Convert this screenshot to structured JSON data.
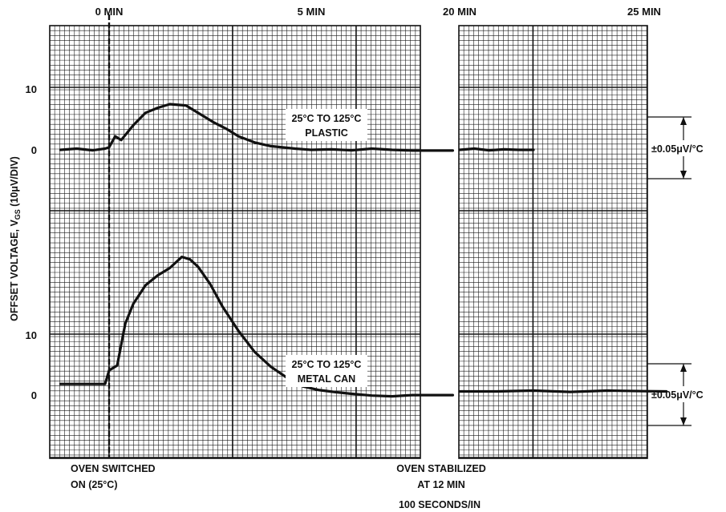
{
  "chart_data": {
    "type": "line",
    "ylabel": "OFFSET VOLTAGE, V",
    "ylabel_subscript": "GS",
    "ylabel_unit": "(10μV/DIV)",
    "xlabel": "100 SECONDS/IN",
    "top_time_labels": [
      "0 MIN",
      "5 MIN",
      "20 MIN",
      "25 MIN"
    ],
    "y_tick_labels": {
      "upper_ten": "10",
      "upper_zero": "0",
      "lower_ten": "10",
      "lower_zero": "0"
    },
    "annotations": {
      "oven_on_line1": "OVEN SWITCHED",
      "oven_on_line2": "ON (25°C)",
      "oven_stable_line1": "OVEN STABILIZED",
      "oven_stable_line2": "AT 12 MIN"
    },
    "series": [
      {
        "name_line1": "25°C TO 125°C",
        "name_line2": "PLASTIC",
        "trace": "upper",
        "y_units": "divisions relative to upper 0 line (10μV/div)",
        "segment_a": {
          "x_min": [
            -1.2,
            -0.8,
            -0.4,
            -0.1,
            0.0,
            0.15,
            0.3,
            0.6,
            0.9,
            1.2,
            1.5,
            1.9,
            2.3,
            2.6,
            2.9,
            3.2,
            3.6,
            4.0,
            4.6,
            5.0,
            5.5,
            6.0,
            6.5,
            7.0,
            7.5,
            8.0,
            8.5
          ],
          "y_div": [
            0.0,
            0.05,
            -0.02,
            0.05,
            0.1,
            0.55,
            0.4,
            1.0,
            1.5,
            1.7,
            1.85,
            1.8,
            1.4,
            1.1,
            0.85,
            0.55,
            0.3,
            0.15,
            0.05,
            0.0,
            0.02,
            -0.02,
            0.05,
            0.0,
            -0.03,
            -0.03,
            -0.03
          ]
        },
        "segment_b": {
          "x_min": [
            20.0,
            20.4,
            20.8,
            21.2,
            21.6,
            22.0
          ],
          "y_div": [
            0.0,
            0.05,
            -0.02,
            0.02,
            0.0,
            0.0
          ]
        }
      },
      {
        "name_line1": "25°C TO 125°C",
        "name_line2": "METAL CAN",
        "trace": "lower",
        "y_units": "divisions relative to lower 0 line (10μV/div)",
        "segment_a": {
          "x_min": [
            -1.2,
            -0.5,
            -0.1,
            0.0,
            0.2,
            0.4,
            0.6,
            0.9,
            1.2,
            1.5,
            1.8,
            2.0,
            2.2,
            2.5,
            2.8,
            3.2,
            3.6,
            4.0,
            4.4,
            4.8,
            5.2,
            5.6,
            6.0,
            6.5,
            7.0,
            7.5,
            8.0,
            8.5
          ],
          "y_div": [
            0.35,
            0.35,
            0.35,
            0.9,
            1.1,
            2.8,
            3.6,
            4.35,
            4.75,
            5.05,
            5.5,
            5.4,
            5.1,
            4.4,
            3.5,
            2.5,
            1.65,
            1.05,
            0.6,
            0.25,
            0.1,
            0.02,
            -0.05,
            -0.12,
            -0.15,
            -0.1,
            -0.1,
            -0.1
          ]
        },
        "segment_b": {
          "x_min": [
            20.0,
            21.0,
            22.0,
            23.0,
            24.0,
            25.0,
            25.6
          ],
          "y_div": [
            0.05,
            0.05,
            0.08,
            0.03,
            0.08,
            0.06,
            0.05
          ]
        }
      }
    ],
    "scale_markers": [
      {
        "label": "±0.05μV/°C",
        "for": "upper"
      },
      {
        "label": "±0.05μV/°C",
        "for": "lower"
      }
    ]
  }
}
